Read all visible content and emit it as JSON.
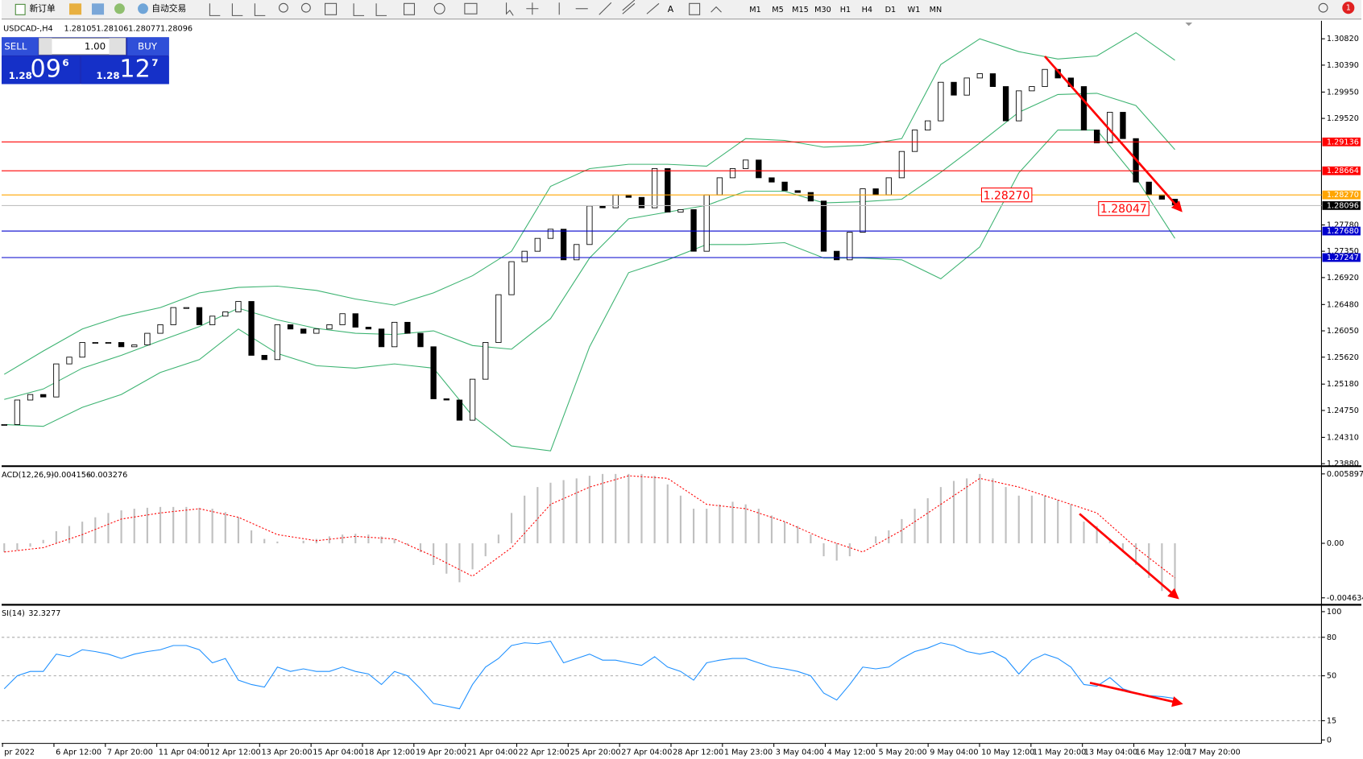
{
  "toolbar": {
    "new_order": "新订单",
    "auto_trading": "自动交易",
    "timeframes": [
      "M1",
      "M5",
      "M15",
      "M30",
      "H1",
      "H4",
      "D1",
      "W1",
      "MN"
    ],
    "notifications": 1
  },
  "trade_panel": {
    "sell": "SELL",
    "buy": "BUY",
    "lot": "1.00",
    "sell_price": {
      "big": "1.28",
      "pips": "09",
      "fraction": "6"
    },
    "buy_price": {
      "big": "1.28",
      "pips": "12",
      "fraction": "7"
    }
  },
  "chart_data": [
    {
      "type": "candlestick",
      "symbol": "USDCAD-,H4",
      "ohlc": [
        1.28105,
        1.28106,
        1.28077,
        1.28096
      ],
      "ylim": [
        1.2384,
        1.311
      ],
      "yticks": [
        {
          "value": 1.3082,
          "label": "1.30820"
        },
        {
          "value": 1.3039,
          "label": "1.30390"
        },
        {
          "value": 1.2995,
          "label": "1.29950"
        },
        {
          "value": 1.2952,
          "label": "1.29520"
        },
        {
          "value": 1.2778,
          "label": "1.27780"
        },
        {
          "value": 1.2735,
          "label": "1.27350"
        },
        {
          "value": 1.2692,
          "label": "1.26920"
        },
        {
          "value": 1.2648,
          "label": "1.26480"
        },
        {
          "value": 1.2605,
          "label": "1.26050"
        },
        {
          "value": 1.2562,
          "label": "1.25620"
        },
        {
          "value": 1.2518,
          "label": "1.25180"
        },
        {
          "value": 1.2475,
          "label": "1.24750"
        },
        {
          "value": 1.2431,
          "label": "1.24310"
        },
        {
          "value": 1.2388,
          "label": "1.23880"
        }
      ],
      "close": [
        1.2452,
        1.2492,
        1.2501,
        1.2497,
        1.2551,
        1.2562,
        1.2586,
        1.2586,
        1.2586,
        1.2579,
        1.2582,
        1.2601,
        1.2615,
        1.2643,
        1.2643,
        1.2615,
        1.2629,
        1.2636,
        1.2653,
        1.2565,
        1.2558,
        1.2615,
        1.2608,
        1.2601,
        1.2608,
        1.2615,
        1.2633,
        1.2611,
        1.2608,
        1.2579,
        1.2619,
        1.2601,
        1.2579,
        1.2494,
        1.2492,
        1.2459,
        1.2526,
        1.2586,
        1.2664,
        1.2718,
        1.2735,
        1.2756,
        1.2771,
        1.2721,
        1.2746,
        1.2809,
        1.2806,
        1.2827,
        1.2823,
        1.2806,
        1.287,
        1.2799,
        1.2803,
        1.2735,
        1.2827,
        1.2855,
        1.287,
        1.2884,
        1.2855,
        1.2848,
        1.2834,
        1.2831,
        1.2817,
        1.2735,
        1.2721,
        1.2766,
        1.2837,
        1.2827,
        1.2855,
        1.2898,
        1.2933,
        1.2948,
        1.3011,
        1.299,
        1.3018,
        1.3025,
        1.3004,
        1.2948,
        1.2997,
        1.3004,
        1.3032,
        1.3018,
        1.3004,
        1.2933,
        1.2912,
        1.2962,
        1.2919,
        1.2848,
        1.2827,
        1.282,
        1.281
      ],
      "band_color": "#3cb371",
      "bands": {
        "upper": [
          1.2534,
          1.2572,
          1.2608,
          1.2629,
          1.2643,
          1.2667,
          1.2676,
          1.2678,
          1.2671,
          1.2657,
          1.2647,
          1.2667,
          1.2695,
          1.2735,
          1.2841,
          1.287,
          1.2877,
          1.2877,
          1.2874,
          1.2919,
          1.2916,
          1.2905,
          1.2908,
          1.2919,
          1.304,
          1.3082,
          1.3061,
          1.3049,
          1.3054,
          1.3092,
          1.3047
        ],
        "middle": [
          1.2493,
          1.251,
          1.2544,
          1.2565,
          1.2589,
          1.2612,
          1.2642,
          1.2623,
          1.2609,
          1.2601,
          1.2599,
          1.2605,
          1.2581,
          1.2575,
          1.2625,
          1.2724,
          1.2788,
          1.2799,
          1.281,
          1.2833,
          1.2833,
          1.2814,
          1.2816,
          1.282,
          1.2864,
          1.2912,
          1.2962,
          1.2991,
          1.2993,
          1.2973,
          1.2901
        ],
        "lower": [
          1.2452,
          1.2449,
          1.248,
          1.2501,
          1.2537,
          1.2558,
          1.2608,
          1.2568,
          1.2548,
          1.2544,
          1.2551,
          1.2544,
          1.2466,
          1.2417,
          1.2409,
          1.2579,
          1.27,
          1.2721,
          1.2746,
          1.2746,
          1.2749,
          1.2724,
          1.2724,
          1.2721,
          1.269,
          1.2742,
          1.2863,
          1.2933,
          1.2933,
          1.2855,
          1.2756
        ]
      },
      "levels": [
        {
          "value": 1.29136,
          "color": "#ff0000",
          "text_color": "#ffffff"
        },
        {
          "value": 1.28664,
          "color": "#ff0000",
          "text_color": "#ffffff"
        },
        {
          "value": 1.2827,
          "label": "1.28270",
          "color": "#ffa500",
          "text_color": "#ffffff"
        },
        {
          "value": 1.28096,
          "color": "#c0c0c0",
          "label_bg": "#000000",
          "text_color": "#ffffff"
        },
        {
          "value": 1.2768,
          "label": "1.27680",
          "color": "#0000cd",
          "text_color": "#ffffff"
        },
        {
          "value": 1.27247,
          "color": "#0000cd",
          "text_color": "#ffffff"
        }
      ],
      "annotations": [
        {
          "value": 1.2827,
          "label": "1.28270",
          "color": "#ff0000"
        },
        {
          "value": 1.28047,
          "color": "#ff0000"
        }
      ]
    },
    {
      "type": "macd",
      "label": "ACD(12,26,9)",
      "readout": [
        -0.004156,
        -0.003276
      ],
      "ylim": [
        -0.00515,
        0.00641
      ],
      "yticks": [
        0.005897,
        {
          "value": 0,
          "label": "0.00"
        },
        -0.004634
      ],
      "histogram_color": "#c0c0c0",
      "signal_color": "#ff0000",
      "histogram": [
        -0.00074,
        -0.00059,
        -0.00029,
        0.00029,
        0.00103,
        0.00147,
        0.00184,
        0.00221,
        0.00258,
        0.0028,
        0.00294,
        0.00302,
        0.00309,
        0.00309,
        0.00309,
        0.00302,
        0.00294,
        0.00265,
        0.00221,
        0.0011,
        0.00037,
        0.00015,
        0,
        0.00022,
        0.00037,
        0.00059,
        0.00074,
        0.00081,
        0.00074,
        0.00059,
        0.00037,
        -0.00015,
        -0.00074,
        -0.00184,
        -0.00258,
        -0.00331,
        -0.00221,
        -0.0011,
        0.00074,
        0.00258,
        0.00405,
        0.00478,
        0.00515,
        0.00537,
        0.00552,
        0.00574,
        0.00589,
        0.00589,
        0.00589,
        0.00589,
        0.00574,
        0.005,
        0.00405,
        0.00294,
        0.00294,
        0.00331,
        0.00353,
        0.00331,
        0.00294,
        0.00236,
        0.00184,
        0.00147,
        0.00074,
        -0.0011,
        -0.00147,
        -0.0011,
        0,
        0.00059,
        0.0011,
        0.00206,
        0.00294,
        0.00383,
        0.00478,
        0.0053,
        0.00552,
        0.00589,
        0.00552,
        0.00478,
        0.00405,
        0.00405,
        0.00405,
        0.00368,
        0.00331,
        0.00184,
        0.00147,
        0.00037,
        -0.00074,
        -0.00184,
        -0.00294,
        -0.00405,
        -0.00442
      ],
      "signal": [
        -0.00074,
        -0.00037,
        0.00074,
        0.00206,
        0.00258,
        0.00294,
        0.00221,
        0.00074,
        0.00022,
        0.00059,
        0.00037,
        -0.0011,
        -0.0028,
        -0.00037,
        0.00331,
        0.00478,
        0.00574,
        0.00552,
        0.00331,
        0.00294,
        0.00184,
        0.00037,
        -0.00074,
        0.0011,
        0.00331,
        0.00552,
        0.00478,
        0.00368,
        0.00258,
        -0.00037,
        -0.00294
      ]
    },
    {
      "type": "rsi",
      "label": "SI(14)",
      "readout": 32.3277,
      "ylim": [
        -2.7,
        104
      ],
      "yticks": [
        100,
        80,
        50,
        15,
        0
      ],
      "guides": [
        80,
        50,
        15
      ],
      "color": "#1e90ff",
      "values": [
        39.9,
        50,
        53.4,
        53.4,
        66.9,
        64.9,
        70.3,
        68.9,
        66.9,
        63.5,
        66.9,
        68.9,
        70.3,
        73.6,
        73.6,
        70.3,
        60.1,
        63.5,
        46.6,
        43.2,
        41.2,
        56.8,
        53.4,
        55.4,
        53.4,
        53.4,
        56.8,
        53.4,
        51.4,
        43.2,
        53.4,
        50,
        39.9,
        28.4,
        26.4,
        24.3,
        43.2,
        56.8,
        63.5,
        73.6,
        75.7,
        75,
        77,
        60.1,
        63.5,
        66.9,
        62.2,
        62.2,
        60.1,
        58.1,
        64.9,
        56.8,
        53.4,
        46.6,
        60.1,
        62.2,
        63.5,
        63.5,
        60.1,
        56.8,
        55.4,
        53.4,
        50,
        36.5,
        31.1,
        43.2,
        56.8,
        55.4,
        56.8,
        63.5,
        68.9,
        71.6,
        75.7,
        73.6,
        68.9,
        66.9,
        68.9,
        63.5,
        51.4,
        62.2,
        66.9,
        63.5,
        56.8,
        43.2,
        41.9,
        48.6,
        39.9,
        36.5,
        34.5,
        33.8,
        32.3
      ]
    }
  ],
  "time_labels": [
    "pr 2022",
    "6 Apr 12:00",
    "7 Apr 20:00",
    "11 Apr 04:00",
    "12 Apr 12:00",
    "13 Apr 20:00",
    "15 Apr 04:00",
    "18 Apr 12:00",
    "19 Apr 20:00",
    "21 Apr 04:00",
    "22 Apr 12:00",
    "25 Apr 20:00",
    "27 Apr 04:00",
    "28 Apr 12:00",
    "1 May 23:00",
    "3 May 04:00",
    "4 May 12:00",
    "5 May 20:00",
    "9 May 04:00",
    "10 May 12:00",
    "11 May 20:00",
    "13 May 04:00",
    "16 May 12:00",
    "17 May 20:00"
  ]
}
